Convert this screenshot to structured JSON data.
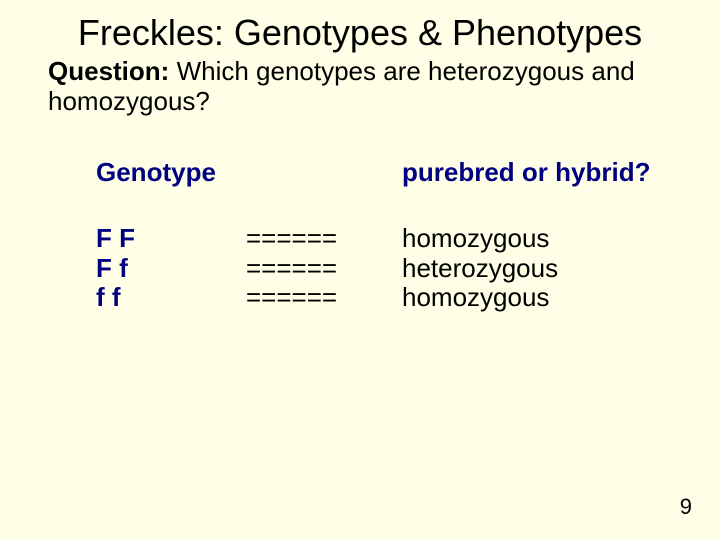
{
  "colors": {
    "background": "#ffffe8",
    "text": "#000000",
    "accent": "#000080"
  },
  "fonts": {
    "family": "Arial",
    "title_size_pt": 36,
    "body_size_pt": 26
  },
  "title": "Freckles: Genotypes & Phenotypes",
  "question_label": "Question:",
  "question_text": " Which genotypes are heterozygous and homozygous?",
  "headers": {
    "genotype": "Genotype",
    "result": "purebred or hybrid?"
  },
  "rows": [
    {
      "genotype": "F F",
      "separator": "======",
      "answer": "homozygous"
    },
    {
      "genotype": "F f",
      "separator": "======",
      "answer": "heterozygous"
    },
    {
      "genotype": "f f",
      "separator": "======",
      "answer": "homozygous"
    }
  ],
  "page_number": "9"
}
